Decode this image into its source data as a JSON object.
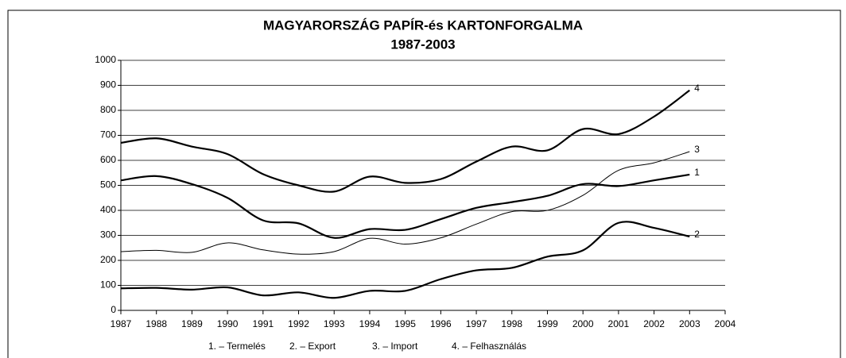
{
  "chart_data": {
    "type": "line",
    "title": "MAGYARORSZÁG PAPÍR-és KARTONFORGALMA",
    "subtitle": "1987-2003",
    "x": [
      1987,
      1988,
      1989,
      1990,
      1991,
      1992,
      1993,
      1994,
      1995,
      1996,
      1997,
      1998,
      1999,
      2000,
      2001,
      2002,
      2003
    ],
    "series": [
      {
        "name": "1. – Termelés",
        "label": "1",
        "color": "#000000",
        "width": 2.2,
        "values": [
          520,
          537,
          505,
          450,
          360,
          348,
          290,
          325,
          322,
          365,
          410,
          433,
          458,
          505,
          497,
          520,
          543
        ]
      },
      {
        "name": "2. – Export",
        "label": "2",
        "color": "#000000",
        "width": 2.2,
        "values": [
          88,
          90,
          83,
          92,
          60,
          72,
          50,
          78,
          78,
          125,
          160,
          170,
          215,
          240,
          350,
          330,
          295
        ]
      },
      {
        "name": "3. – Import",
        "label": "3",
        "color": "#000000",
        "width": 1,
        "values": [
          235,
          240,
          232,
          270,
          242,
          225,
          235,
          288,
          265,
          290,
          345,
          395,
          400,
          460,
          560,
          590,
          635
        ]
      },
      {
        "name": "4. – Felhasználás",
        "label": "4",
        "color": "#000000",
        "width": 2.2,
        "values": [
          670,
          688,
          655,
          625,
          545,
          500,
          475,
          535,
          510,
          525,
          595,
          655,
          640,
          725,
          705,
          775,
          880
        ]
      }
    ],
    "xlim": [
      1987,
      2004
    ],
    "xticks": [
      1987,
      1988,
      1989,
      1990,
      1991,
      1992,
      1993,
      1994,
      1995,
      1996,
      1997,
      1998,
      1999,
      2000,
      2001,
      2002,
      2003,
      2004
    ],
    "ylim": [
      0,
      1000
    ],
    "yticks": [
      0,
      100,
      200,
      300,
      400,
      500,
      600,
      700,
      800,
      900,
      1000
    ],
    "grid": true,
    "legend": "bottom"
  }
}
